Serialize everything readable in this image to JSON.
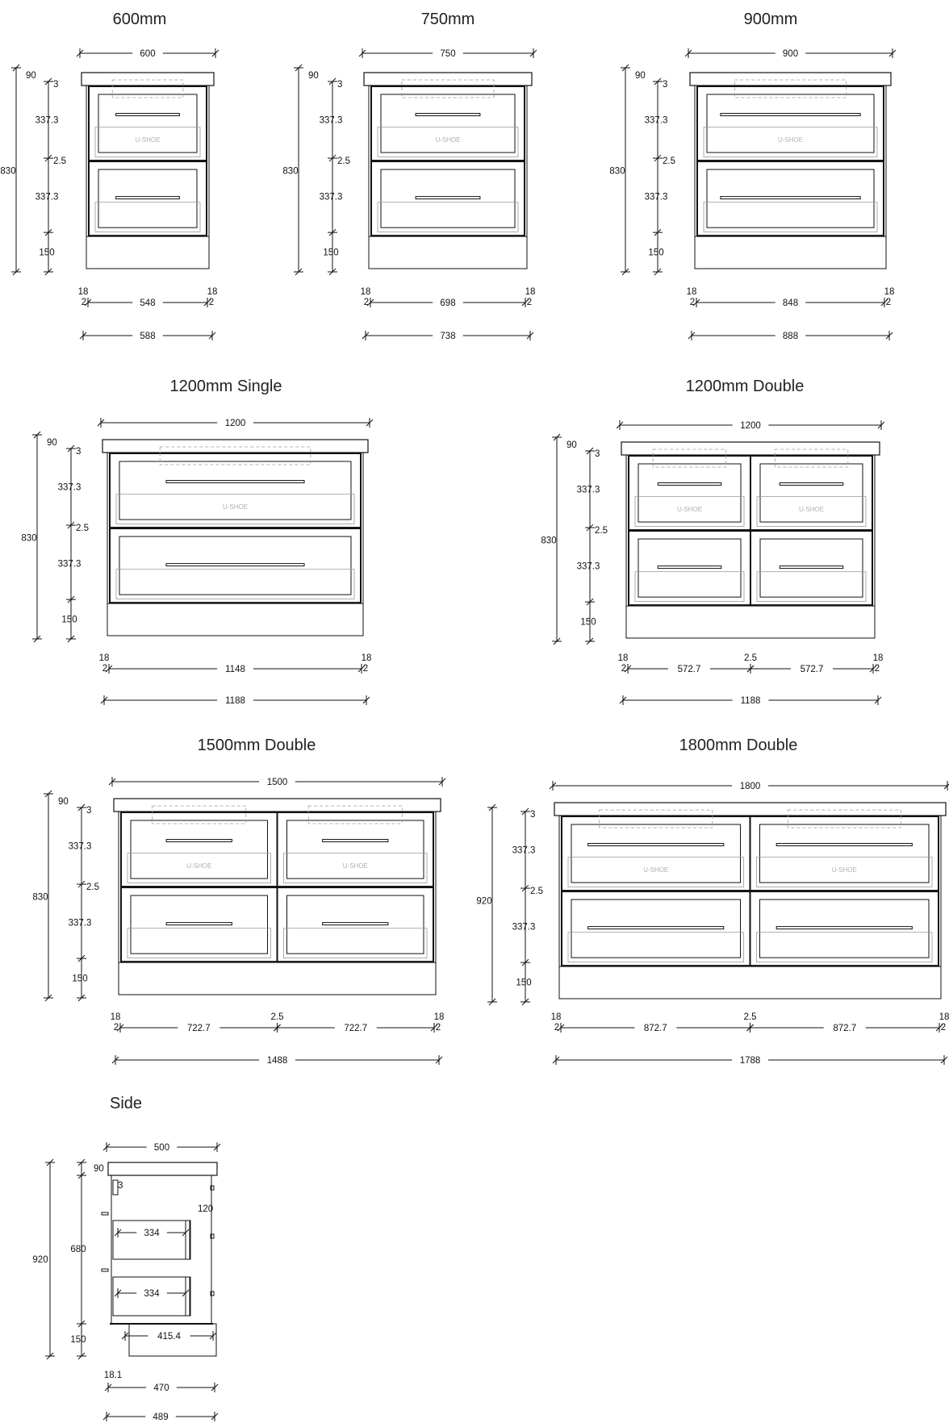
{
  "drawings": [
    {
      "id": "600",
      "title": "600mm",
      "kind": "single",
      "labels": {
        "top_width": "600",
        "height": "830",
        "top_thickness": "90",
        "gap_top": "3",
        "drawer1": "337.3",
        "gap_mid": "2.5",
        "drawer2": "337.3",
        "kick": "150",
        "side_left": "18",
        "side_left_small": "2",
        "inner": "548",
        "side_right": "18",
        "side_right_small": "2",
        "outer": "588",
        "watermark": "U-SHOE"
      }
    },
    {
      "id": "750",
      "title": "750mm",
      "kind": "single",
      "labels": {
        "top_width": "750",
        "height": "830",
        "top_thickness": "90",
        "gap_top": "3",
        "drawer1": "337.3",
        "gap_mid": "2.5",
        "drawer2": "337.3",
        "kick": "150",
        "side_left": "18",
        "side_left_small": "2",
        "inner": "698",
        "side_right": "18",
        "side_right_small": "2",
        "outer": "738",
        "watermark": "U-SHOE"
      }
    },
    {
      "id": "900",
      "title": "900mm",
      "kind": "single",
      "labels": {
        "top_width": "900",
        "height": "830",
        "top_thickness": "90",
        "gap_top": "3",
        "drawer1": "337.3",
        "gap_mid": "2.5",
        "drawer2": "337.3",
        "kick": "150",
        "side_left": "18",
        "side_left_small": "2",
        "inner": "848",
        "side_right": "18",
        "side_right_small": "2",
        "outer": "888",
        "watermark": "U-SHOE"
      }
    },
    {
      "id": "1200s",
      "title": "1200mm Single",
      "kind": "single",
      "labels": {
        "top_width": "1200",
        "height": "830",
        "top_thickness": "90",
        "gap_top": "3",
        "drawer1": "337.3",
        "gap_mid": "2.5",
        "drawer2": "337.3",
        "kick": "150",
        "side_left": "18",
        "side_left_small": "2",
        "inner": "1148",
        "side_right": "18",
        "side_right_small": "2",
        "outer": "1188",
        "watermark": "U-SHOE"
      }
    },
    {
      "id": "1200d",
      "title": "1200mm Double",
      "kind": "double",
      "labels": {
        "top_width": "1200",
        "height": "830",
        "top_thickness": "90",
        "gap_top": "3",
        "drawer1": "337.3",
        "gap_mid": "2.5",
        "drawer2": "337.3",
        "kick": "150",
        "side_left": "18",
        "side_left_small": "2",
        "inner_left": "572.7",
        "centre_gap": "2.5",
        "inner_right": "572.7",
        "side_right": "18",
        "side_right_small": "2",
        "outer": "1188",
        "watermark": "U-SHOE"
      }
    },
    {
      "id": "1500d",
      "title": "1500mm Double",
      "kind": "double",
      "labels": {
        "top_width": "1500",
        "height": "830",
        "top_thickness": "90",
        "gap_top": "3",
        "drawer1": "337.3",
        "gap_mid": "2.5",
        "drawer2": "337.3",
        "kick": "150",
        "side_left": "18",
        "side_left_small": "2",
        "inner_left": "722.7",
        "centre_gap": "2.5",
        "inner_right": "722.7",
        "side_right": "18",
        "side_right_small": "2",
        "outer": "1488",
        "watermark": "U-SHOE"
      }
    },
    {
      "id": "1800d",
      "title": "1800mm Double",
      "kind": "double",
      "labels": {
        "top_width": "1800",
        "height": "920",
        "gap_top": "3",
        "drawer1": "337.3",
        "gap_mid": "2.5",
        "drawer2": "337.3",
        "kick": "150",
        "side_left": "18",
        "side_left_small": "2",
        "inner_left": "872.7",
        "centre_gap": "2.5",
        "inner_right": "872.7",
        "side_right": "18",
        "side_right_small": "2",
        "outer": "1788",
        "watermark": "U-SHOE"
      }
    }
  ],
  "side": {
    "title": "Side",
    "labels": {
      "top_depth": "500",
      "top_thickness": "90",
      "gap_top": "3",
      "back_offset": "120",
      "drawer_depth_1": "334",
      "drawer_depth_2": "334",
      "carcass_height": "680",
      "overall_height": "920",
      "kick": "150",
      "kick_depth": "415.4",
      "panel_thickness": "18.1",
      "carcass_depth": "470",
      "overall_depth": "489"
    }
  }
}
